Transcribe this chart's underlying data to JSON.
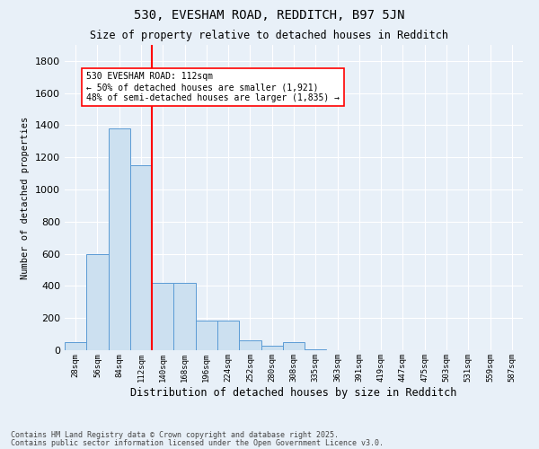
{
  "title1": "530, EVESHAM ROAD, REDDITCH, B97 5JN",
  "title2": "Size of property relative to detached houses in Redditch",
  "xlabel": "Distribution of detached houses by size in Redditch",
  "ylabel": "Number of detached properties",
  "bins": [
    "28sqm",
    "56sqm",
    "84sqm",
    "112sqm",
    "140sqm",
    "168sqm",
    "196sqm",
    "224sqm",
    "252sqm",
    "280sqm",
    "308sqm",
    "335sqm",
    "363sqm",
    "391sqm",
    "419sqm",
    "447sqm",
    "475sqm",
    "503sqm",
    "531sqm",
    "559sqm",
    "587sqm"
  ],
  "values": [
    50,
    600,
    1380,
    1150,
    420,
    420,
    185,
    185,
    60,
    30,
    50,
    5,
    0,
    0,
    0,
    0,
    0,
    0,
    0,
    0,
    0
  ],
  "bar_color": "#cce0f0",
  "bar_edge_color": "#5b9bd5",
  "vline_x": 3.5,
  "vline_color": "red",
  "ylim": [
    0,
    1900
  ],
  "yticks": [
    0,
    200,
    400,
    600,
    800,
    1000,
    1200,
    1400,
    1600,
    1800
  ],
  "annotation_text": "530 EVESHAM ROAD: 112sqm\n← 50% of detached houses are smaller (1,921)\n48% of semi-detached houses are larger (1,835) →",
  "annotation_box_color": "white",
  "annotation_box_edge": "red",
  "bg_color": "#e8f0f8",
  "grid_color": "white",
  "footer1": "Contains HM Land Registry data © Crown copyright and database right 2025.",
  "footer2": "Contains public sector information licensed under the Open Government Licence v3.0."
}
